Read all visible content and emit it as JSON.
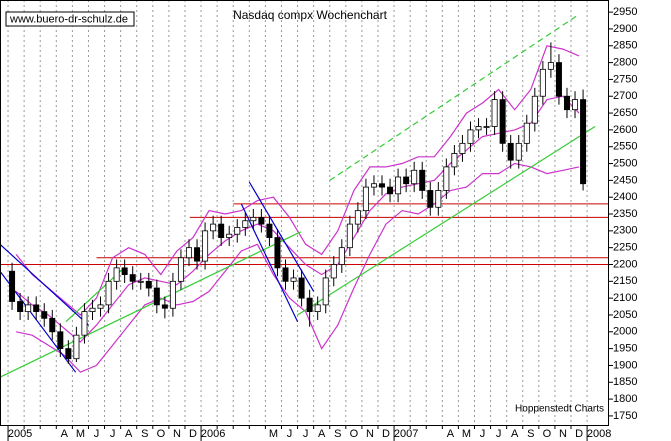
{
  "chart_data": {
    "type": "candlestick",
    "title": "Nasdaq compx Wochenchart",
    "watermark": "www.buero-dr-schulz.de",
    "source": "Hoppenstedt Charts",
    "categories": [
      "2005",
      null,
      null,
      "A",
      "M",
      "J",
      "J",
      "A",
      "S",
      "O",
      "N",
      "D",
      "2006",
      null,
      null,
      null,
      "M",
      "J",
      "J",
      "A",
      "S",
      "O",
      "N",
      "D",
      "2007",
      null,
      null,
      "A",
      "M",
      "J",
      "J",
      "A",
      "S",
      "O",
      "N",
      "D",
      "2008"
    ],
    "xlim": [
      -0.5,
      37.3
    ],
    "ylim": [
      1723,
      2986
    ],
    "yticks": [
      1750,
      1800,
      1850,
      1900,
      1950,
      2000,
      2050,
      2100,
      2150,
      2200,
      2250,
      2300,
      2350,
      2400,
      2450,
      2500,
      2550,
      2600,
      2650,
      2700,
      2750,
      2800,
      2850,
      2900,
      2950
    ],
    "grid": true,
    "candle_colors": {
      "up": "#ffffff",
      "down": "#000000",
      "outline": "#000000"
    },
    "candles": {
      "x": [
        0.25,
        0.75,
        1.25,
        1.75,
        2.25,
        2.75,
        3.25,
        3.75,
        4.25,
        4.75,
        5.25,
        5.75,
        6.25,
        6.75,
        7.25,
        7.75,
        8.25,
        8.75,
        9.25,
        9.75,
        10.25,
        10.75,
        11.25,
        11.75,
        12.25,
        12.75,
        13.25,
        13.75,
        14.25,
        14.75,
        15.25,
        15.75,
        16.25,
        16.75,
        17.25,
        17.75,
        18.25,
        18.75,
        19.25,
        19.75,
        20.25,
        20.75,
        21.25,
        21.75,
        22.25,
        22.75,
        23.25,
        23.75,
        24.25,
        24.75,
        25.25,
        25.75,
        26.25,
        26.75,
        27.25,
        27.75,
        28.25,
        28.75,
        29.25,
        29.75,
        30.25,
        30.75,
        31.25,
        31.75,
        32.25,
        32.75,
        33.25,
        33.75,
        34.25,
        34.75,
        35.25,
        35.75
      ],
      "open": [
        2180,
        2090,
        2060,
        2080,
        2060,
        2040,
        2000,
        1950,
        1920,
        1990,
        2060,
        2070,
        2080,
        2150,
        2190,
        2170,
        2150,
        2150,
        2130,
        2080,
        2070,
        2150,
        2220,
        2250,
        2210,
        2300,
        2320,
        2280,
        2290,
        2310,
        2330,
        2340,
        2320,
        2280,
        2190,
        2150,
        2160,
        2100,
        2060,
        2080,
        2160,
        2200,
        2250,
        2320,
        2360,
        2430,
        2440,
        2430,
        2410,
        2460,
        2440,
        2480,
        2420,
        2370,
        2420,
        2490,
        2530,
        2560,
        2600,
        2610,
        2610,
        2690,
        2560,
        2510,
        2560,
        2620,
        2700,
        2780,
        2800,
        2700,
        2660,
        2690
      ],
      "high": [
        2205,
        2115,
        2105,
        2105,
        2085,
        2065,
        2025,
        1975,
        2015,
        2085,
        2095,
        2105,
        2175,
        2215,
        2215,
        2195,
        2175,
        2175,
        2155,
        2105,
        2175,
        2245,
        2275,
        2275,
        2325,
        2345,
        2345,
        2315,
        2335,
        2355,
        2365,
        2365,
        2345,
        2305,
        2215,
        2185,
        2185,
        2125,
        2105,
        2185,
        2225,
        2275,
        2345,
        2385,
        2455,
        2465,
        2465,
        2455,
        2485,
        2485,
        2505,
        2505,
        2445,
        2445,
        2515,
        2555,
        2585,
        2625,
        2635,
        2635,
        2715,
        2715,
        2585,
        2585,
        2645,
        2725,
        2805,
        2860,
        2825,
        2725,
        2715,
        2720
      ],
      "low": [
        2065,
        2035,
        2035,
        2035,
        2015,
        1975,
        1925,
        1905,
        1910,
        1965,
        2035,
        2045,
        2055,
        2125,
        2145,
        2125,
        2125,
        2105,
        2055,
        2040,
        2045,
        2125,
        2195,
        2185,
        2185,
        2275,
        2255,
        2255,
        2265,
        2285,
        2305,
        2295,
        2255,
        2165,
        2125,
        2125,
        2075,
        2015,
        2035,
        2055,
        2135,
        2175,
        2225,
        2295,
        2335,
        2405,
        2405,
        2385,
        2385,
        2415,
        2415,
        2395,
        2345,
        2345,
        2395,
        2465,
        2505,
        2535,
        2575,
        2585,
        2585,
        2535,
        2485,
        2485,
        2535,
        2595,
        2675,
        2755,
        2675,
        2635,
        2635,
        2420
      ],
      "close": [
        2090,
        2060,
        2080,
        2060,
        2040,
        2000,
        1950,
        1920,
        1990,
        2060,
        2070,
        2080,
        2150,
        2190,
        2170,
        2150,
        2150,
        2130,
        2080,
        2070,
        2150,
        2220,
        2250,
        2210,
        2300,
        2320,
        2280,
        2290,
        2310,
        2330,
        2340,
        2320,
        2280,
        2190,
        2150,
        2160,
        2100,
        2060,
        2080,
        2160,
        2200,
        2250,
        2320,
        2360,
        2430,
        2440,
        2430,
        2410,
        2460,
        2440,
        2480,
        2420,
        2370,
        2420,
        2490,
        2530,
        2560,
        2600,
        2610,
        2610,
        2690,
        2560,
        2510,
        2560,
        2620,
        2700,
        2780,
        2800,
        2700,
        2660,
        2690,
        2440
      ]
    },
    "bands": {
      "color": "#cc33cc",
      "upper": [
        2230,
        2170,
        2130,
        2090,
        2050,
        2100,
        2220,
        2250,
        2230,
        2170,
        2240,
        2280,
        2360,
        2350,
        2360,
        2390,
        2400,
        2340,
        2260,
        2230,
        2300,
        2420,
        2490,
        2490,
        2500,
        2520,
        2520,
        2580,
        2650,
        2680,
        2720,
        2660,
        2720,
        2850,
        2840,
        2820,
        null
      ],
      "middle": [
        2120,
        2080,
        2050,
        2010,
        1970,
        2020,
        2080,
        2140,
        2160,
        2150,
        2140,
        2180,
        2230,
        2270,
        2300,
        2320,
        2300,
        2250,
        2200,
        2170,
        2200,
        2280,
        2360,
        2410,
        2430,
        2440,
        2450,
        2500,
        2540,
        2580,
        2590,
        2600,
        2620,
        2690,
        2700,
        2650,
        null
      ],
      "lower": [
        2000,
        1990,
        1960,
        1930,
        1880,
        1900,
        1960,
        2020,
        2080,
        2100,
        2080,
        2090,
        2120,
        2180,
        2240,
        2260,
        2170,
        2100,
        2060,
        1950,
        2020,
        2130,
        2230,
        2320,
        2360,
        2350,
        2380,
        2420,
        2430,
        2470,
        2470,
        2500,
        2490,
        2470,
        2480,
        2490,
        null
      ]
    },
    "trendlines": [
      {
        "color": "#33cc33",
        "dashed": false,
        "x": [
          -0.5,
          18.2
        ],
        "y": [
          1865,
          2297
        ]
      },
      {
        "color": "#33cc33",
        "dashed": false,
        "x": [
          18,
          36.5
        ],
        "y": [
          2050,
          2610
        ]
      },
      {
        "color": "#33cc33",
        "dashed": true,
        "x": [
          20,
          35.4
        ],
        "y": [
          2450,
          2940
        ]
      },
      {
        "color": "#33cc33",
        "dashed": false,
        "x": [
          3.6,
          7.2
        ],
        "y": [
          2030,
          2190
        ]
      },
      {
        "color": "#0000cc",
        "dashed": false,
        "x": [
          -0.5,
          5
        ],
        "y": [
          2260,
          2020
        ]
      },
      {
        "color": "#0000cc",
        "dashed": false,
        "x": [
          -0.5,
          4.2
        ],
        "y": [
          2180,
          1880
        ]
      },
      {
        "color": "#0000cc",
        "dashed": false,
        "x": [
          15,
          19
        ],
        "y": [
          2445,
          2120
        ]
      },
      {
        "color": "#0000cc",
        "dashed": false,
        "x": [
          14.5,
          18
        ],
        "y": [
          2380,
          2030
        ]
      }
    ],
    "levels": {
      "color": "#cc0000",
      "values": [
        2380,
        2340,
        2220,
        2200
      ],
      "from": [
        14,
        11.3,
        5.5,
        -0.5
      ]
    }
  }
}
